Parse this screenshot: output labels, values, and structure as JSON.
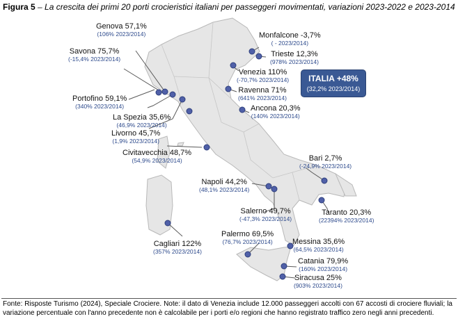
{
  "title": {
    "prefix": "Figura 5",
    "text": " – La crescita dei primi 20 porti crocieristici italiani per passeggeri movimentati, variazioni 2023-2022 e 2023-2014"
  },
  "summary": {
    "label": "ITALIA +48%",
    "sub": "(32,2% 2023/2014)"
  },
  "ports": [
    {
      "name": "Genova 57,1%",
      "sub": "(106% 2023/2014)"
    },
    {
      "name": "Savona 75,7%",
      "sub": "(-15,4% 2023/2014)"
    },
    {
      "name": "Portofino 59,1%",
      "sub": "(340% 2023/2014)"
    },
    {
      "name": "La Spezia 35,6%",
      "sub": "(46,9% 2023/2014)"
    },
    {
      "name": "Livorno 45,7%",
      "sub": "(1,9% 2023/2014)"
    },
    {
      "name": "Civitavecchia 48,7%",
      "sub": "(54,9% 2023/2014)"
    },
    {
      "name": "Monfalcone -3,7%",
      "sub": "( - 2023/2014)"
    },
    {
      "name": "Trieste 12,3%",
      "sub": "(978% 2023/2014)"
    },
    {
      "name": "Venezia 110%",
      "sub": "(-70,7% 2023/2014)"
    },
    {
      "name": "Ravenna 71%",
      "sub": "(641% 2023/2014)"
    },
    {
      "name": "Ancona 20,3%",
      "sub": "(140% 2023/2014)"
    },
    {
      "name": "Bari 2,7%",
      "sub": "(-24,9% 2023/2014)"
    },
    {
      "name": "Napoli 44,2%",
      "sub": "(48,1% 2023/2014)"
    },
    {
      "name": "Salerno 49,7%",
      "sub": "(-47,3% 2023/2014)"
    },
    {
      "name": "Taranto 20,3%",
      "sub": "(22394% 2023/2014)"
    },
    {
      "name": "Palermo 69,5%",
      "sub": "(76,7% 2023/2014)"
    },
    {
      "name": "Messina 35,6%",
      "sub": "(64,5% 2023/2014)"
    },
    {
      "name": "Cagliari 122%",
      "sub": "(357% 2023/2014)"
    },
    {
      "name": "Catania 79,9%",
      "sub": "(160% 2023/2014)"
    },
    {
      "name": "Siracusa 25%",
      "sub": "(903% 2023/2014)"
    }
  ],
  "footnote": "Fonte: Risposte Turismo (2024), Speciale Crociere. Note: il dato di Venezia include 12.000 passeggeri accolti con 67 accosti di crociere fluviali; la variazione percentuale con l'anno precedente non è calcolabile per i porti e/o regioni che hanno registrato traffico zero negli anni precedenti.",
  "colors": {
    "land": "#e6e6e6",
    "border": "#b8b8b8",
    "dot": "#5060a8",
    "leader": "#5a5a5a",
    "badge": "#3a5994",
    "sub_text": "#2d4a8c"
  }
}
